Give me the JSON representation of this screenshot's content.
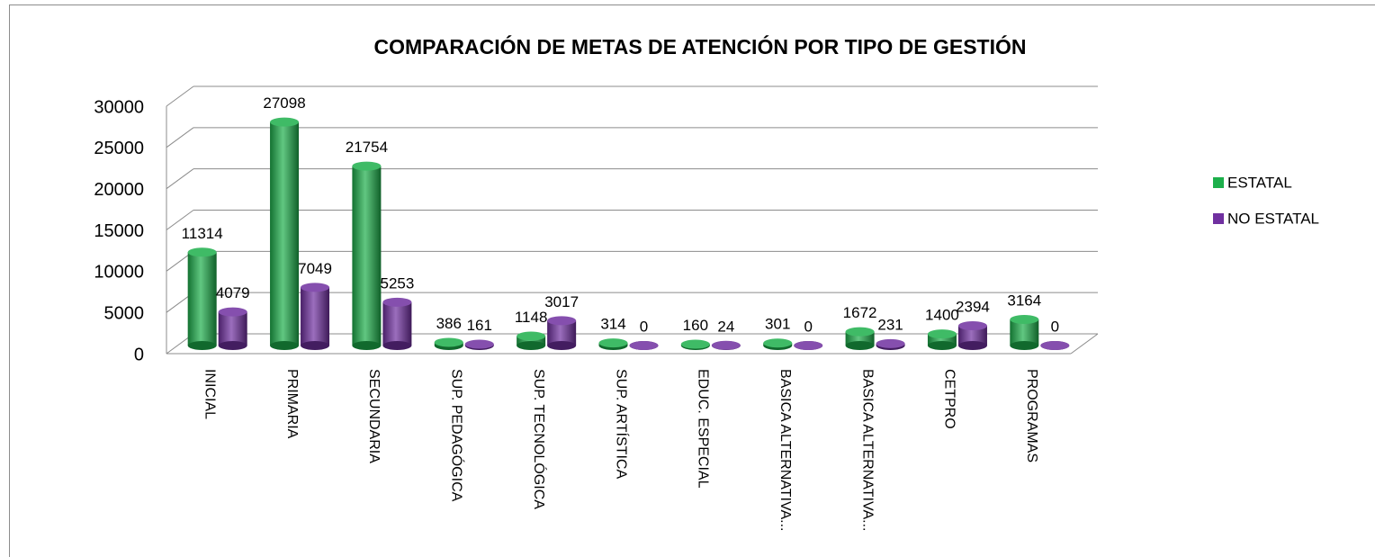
{
  "chart_data": {
    "type": "bar3d",
    "title": "COMPARACIÓN DE METAS DE ATENCIÓN POR TIPO  DE GESTIÓN",
    "categories": [
      "INICIAL",
      "PRIMARIA",
      "SECUNDARIA",
      "SUP. PEDAGÓGICA",
      "SUP. TECNOLÓGICA",
      "SUP. ARTÍSTICA",
      "EDUC. ESPECIAL",
      "BASICA ALTERNATIVA...",
      "BASICA ALTERNATIVA...",
      "CETPRO",
      "PROGRAMAS"
    ],
    "series": [
      {
        "name": "ESTATAL",
        "color": "#1daf4b",
        "values": [
          11314,
          27098,
          21754,
          386,
          1148,
          314,
          160,
          301,
          1672,
          1400,
          3164
        ]
      },
      {
        "name": "NO ESTATAL",
        "color": "#7030a0",
        "values": [
          4079,
          7049,
          5253,
          161,
          3017,
          0,
          24,
          0,
          231,
          2394,
          0
        ]
      }
    ],
    "ylim": [
      0,
      30000
    ],
    "yticks": [
      0,
      5000,
      10000,
      15000,
      20000,
      25000,
      30000
    ],
    "grid": true,
    "legend": "right"
  }
}
